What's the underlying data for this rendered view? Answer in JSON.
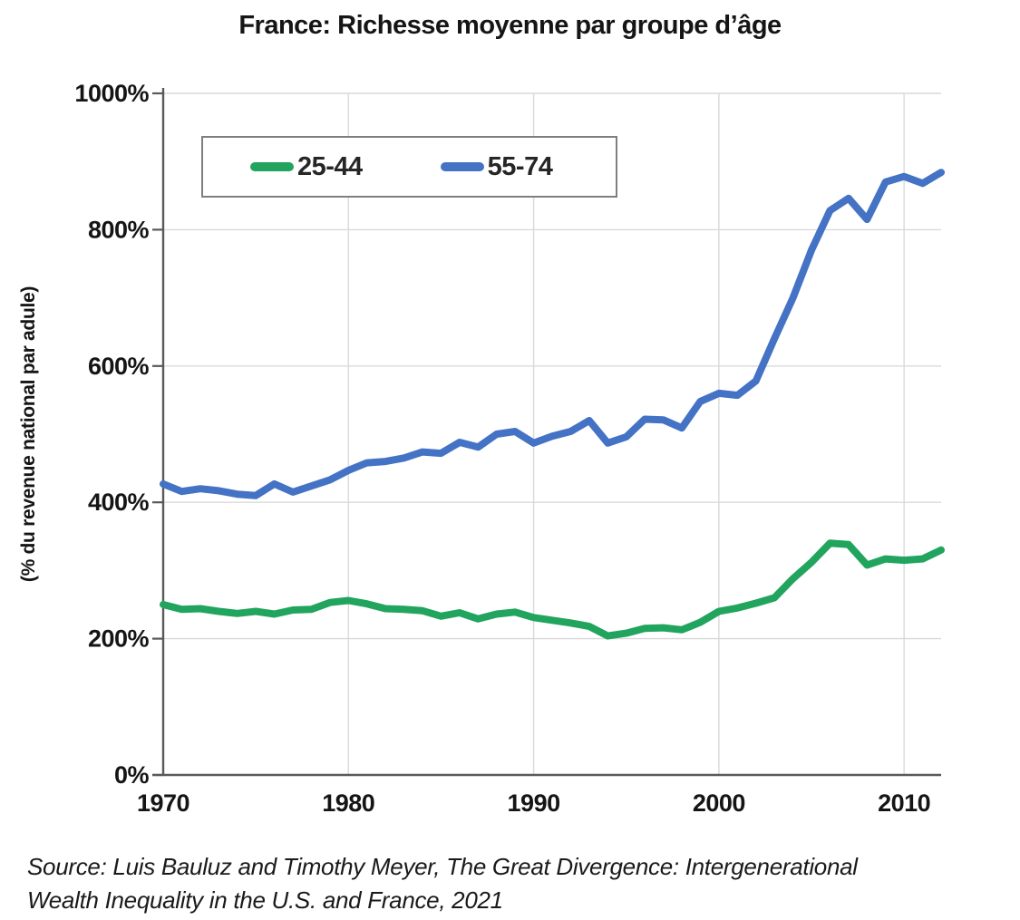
{
  "title": "France: Richesse moyenne par groupe d’âge",
  "source": {
    "line1": "Source: Luis Bauluz and Timothy Meyer, The Great Divergence: Intergenerational",
    "line2": "Wealth Inequality in the U.S. and France, 2021"
  },
  "colors": {
    "green": "#21A45D",
    "blue": "#4472C4",
    "grid": "#d9d9d9",
    "axis": "#595959",
    "text": "#151515",
    "legend_border": "#7f7f7f"
  },
  "chart_data": {
    "type": "line",
    "title": "France: Richesse moyenne par groupe d’âge",
    "xlabel": "",
    "ylabel": "(% du revenue national par adule)",
    "xlim": [
      1970,
      2012
    ],
    "ylim": [
      0,
      1000
    ],
    "grid": true,
    "legend_position": "top-left",
    "yticks": [
      {
        "v": 0,
        "label": "0%"
      },
      {
        "v": 200,
        "label": "200%"
      },
      {
        "v": 400,
        "label": "400%"
      },
      {
        "v": 600,
        "label": "600%"
      },
      {
        "v": 800,
        "label": "800%"
      },
      {
        "v": 1000,
        "label": "1000%"
      }
    ],
    "xticks": [
      {
        "v": 1970,
        "label": "1970"
      },
      {
        "v": 1980,
        "label": "1980"
      },
      {
        "v": 1990,
        "label": "1990"
      },
      {
        "v": 2000,
        "label": "2000"
      },
      {
        "v": 2010,
        "label": "2010"
      }
    ],
    "x": [
      1970,
      1971,
      1972,
      1973,
      1974,
      1975,
      1976,
      1977,
      1978,
      1979,
      1980,
      1981,
      1982,
      1983,
      1984,
      1985,
      1986,
      1987,
      1988,
      1989,
      1990,
      1991,
      1992,
      1993,
      1994,
      1995,
      1996,
      1997,
      1998,
      1999,
      2000,
      2001,
      2002,
      2003,
      2004,
      2005,
      2006,
      2007,
      2008,
      2009,
      2010,
      2011,
      2012
    ],
    "series": [
      {
        "name": "25-44",
        "color": "#21A45D",
        "values": [
          250,
          243,
          244,
          240,
          237,
          240,
          236,
          242,
          243,
          253,
          256,
          251,
          244,
          243,
          241,
          233,
          238,
          229,
          236,
          239,
          231,
          227,
          223,
          218,
          204,
          208,
          215,
          216,
          213,
          224,
          240,
          245,
          252,
          260,
          288,
          312,
          340,
          338,
          308,
          317,
          315,
          317,
          330
        ]
      },
      {
        "name": "55-74",
        "color": "#4472C4",
        "values": [
          427,
          416,
          420,
          417,
          412,
          410,
          427,
          415,
          424,
          433,
          447,
          458,
          460,
          465,
          474,
          472,
          488,
          481,
          500,
          504,
          487,
          497,
          504,
          520,
          487,
          496,
          522,
          521,
          509,
          548,
          560,
          557,
          578,
          640,
          700,
          770,
          828,
          846,
          815,
          870,
          878,
          868,
          884
        ]
      }
    ]
  }
}
